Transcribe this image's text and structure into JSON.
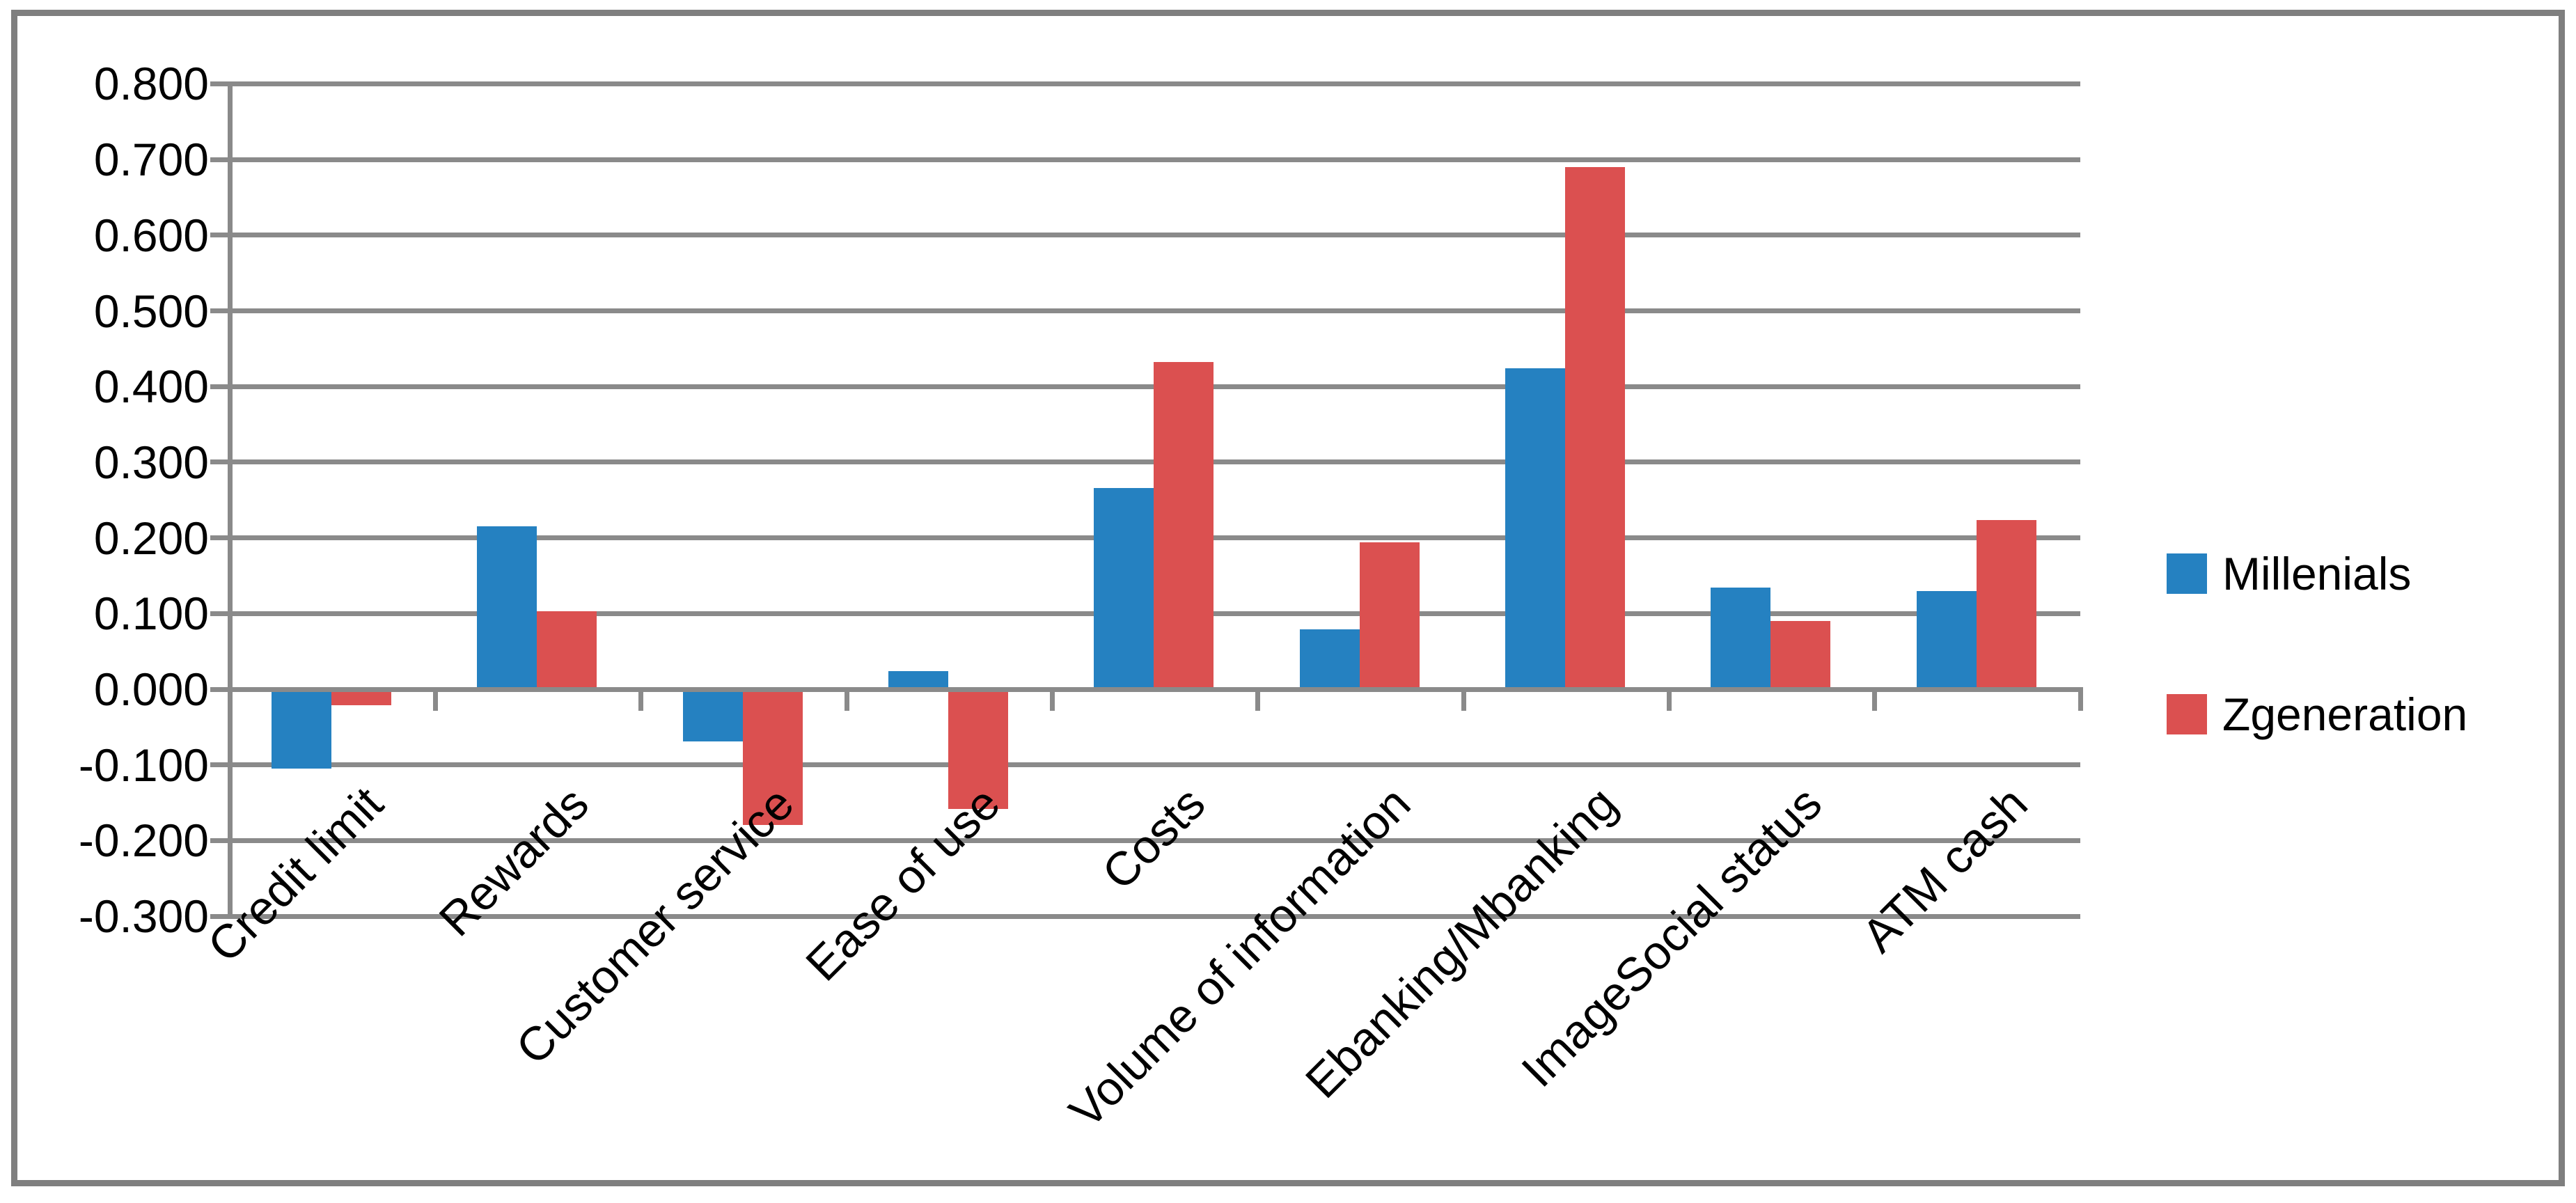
{
  "chart_data": {
    "type": "bar",
    "title": "",
    "xlabel": "",
    "ylabel": "",
    "categories": [
      "Credit limit",
      "Rewards",
      "Customer service",
      "Ease of use",
      "Costs",
      "Volume of information",
      "Ebanking/Mbanking",
      "ImageSocial status",
      "ATM cash"
    ],
    "series": [
      {
        "name": "Millenials",
        "color": "#2581C1",
        "values": [
          -0.105,
          0.215,
          -0.069,
          0.024,
          0.266,
          0.079,
          0.424,
          0.134,
          0.13
        ]
      },
      {
        "name": "Zgeneration",
        "color": "#DB5050",
        "values": [
          -0.021,
          0.103,
          -0.179,
          -0.158,
          0.432,
          0.194,
          0.69,
          0.09,
          0.224
        ]
      }
    ],
    "ylim": [
      -0.3,
      0.8
    ],
    "ytick_step": 0.1,
    "ytick_labels": [
      "0.800",
      "0.700",
      "0.600",
      "0.500",
      "0.400",
      "0.300",
      "0.200",
      "0.100",
      "0.000",
      "-0.100",
      "-0.200",
      "-0.300"
    ],
    "grid": true,
    "legend_position": "right",
    "x_label_rotation_deg": 45,
    "styles": {
      "gridline_color": "#8A8A8A",
      "axis_color": "#8A8A8A",
      "frame_border_color": "#7F7F7F",
      "background_color": "#FFFFFF",
      "text_color": "#000000"
    }
  }
}
